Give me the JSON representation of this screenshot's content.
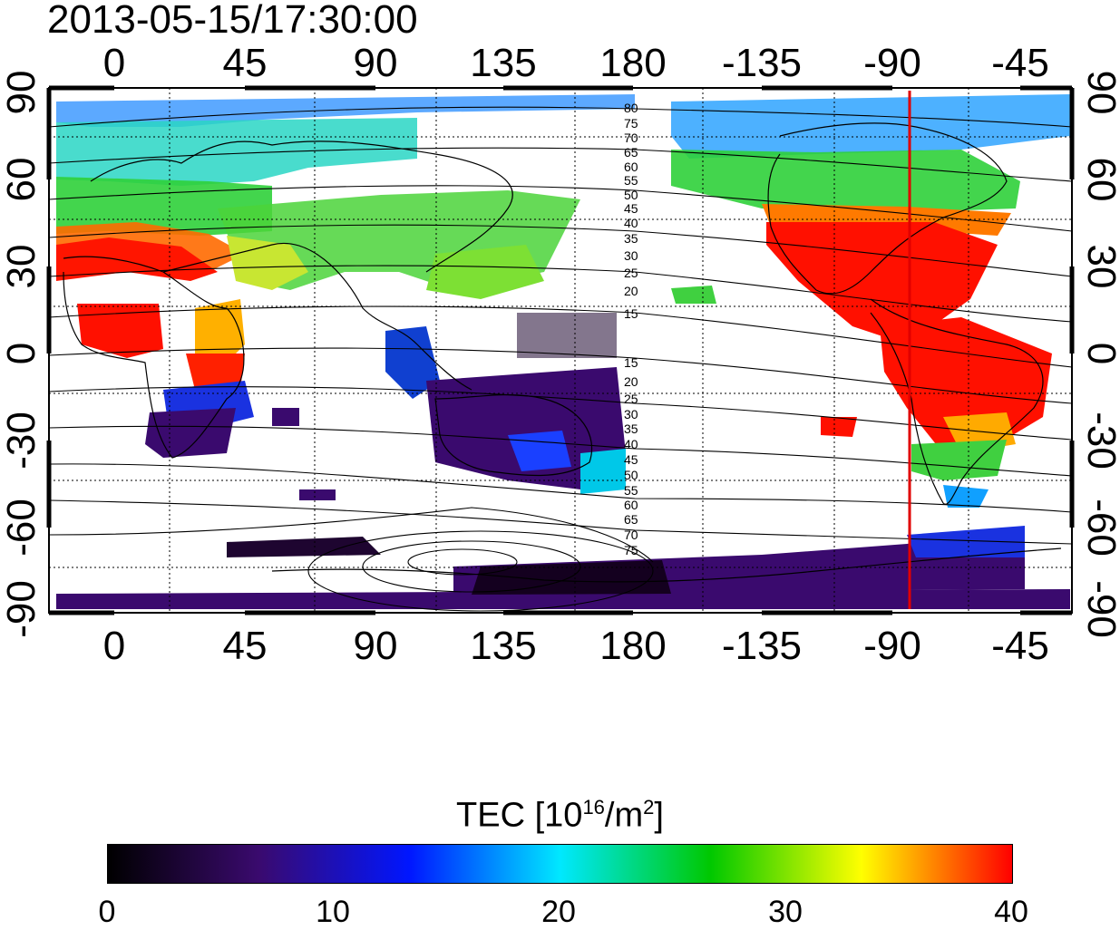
{
  "timestamp": "2013-05-15/17:30:00",
  "map": {
    "top_lon_labels": [
      "0",
      "45",
      "90",
      "135",
      "180",
      "-135",
      "-90",
      "-45"
    ],
    "bottom_lon_labels": [
      "0",
      "45",
      "90",
      "135",
      "180",
      "-135",
      "-90",
      "-45"
    ],
    "left_lat_labels": [
      "90",
      "60",
      "30",
      "0",
      "-30",
      "-60",
      "-90"
    ],
    "right_lat_labels": [
      "90",
      "60",
      "30",
      "0",
      "-30",
      "-60",
      "-90"
    ],
    "contour_labels_north": [
      "80",
      "75",
      "70",
      "65",
      "60",
      "55",
      "50",
      "45",
      "40",
      "35",
      "30",
      "25",
      "20",
      "15"
    ],
    "contour_labels_south": [
      "15",
      "20",
      "25",
      "30",
      "35",
      "40",
      "45",
      "50",
      "55",
      "60",
      "65",
      "70",
      "75"
    ],
    "marker_color": "#e00000"
  },
  "colorbar": {
    "title_main": "TEC  [10",
    "title_exp1": "16",
    "title_mid": "/m",
    "title_exp2": "2",
    "title_end": "]",
    "ticks": [
      "0",
      "10",
      "20",
      "30",
      "40"
    ],
    "colors": [
      "#000000",
      "#3a0a6e",
      "#0016ff",
      "#00e8ff",
      "#00c800",
      "#ffff00",
      "#ff0000"
    ]
  }
}
